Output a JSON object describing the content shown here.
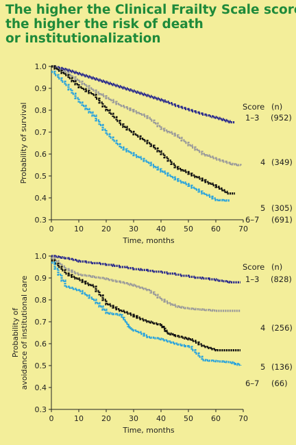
{
  "title_lines": [
    "The higher the Clinical Frailty Scale score,",
    "the higher the risk of death",
    "or institutionalization"
  ],
  "colors": {
    "s1_3": "#2b2b8c",
    "s4": "#9a9a9a",
    "s5": "#111111",
    "s6_7": "#2aa3dc",
    "title": "#1e8a3a",
    "background": "#f3ee9a"
  },
  "chart_data": [
    {
      "type": "line",
      "xlabel": "Time, months",
      "ylabel": "Probability of survival",
      "xlim": [
        0,
        70
      ],
      "ylim": [
        0.3,
        1.0
      ],
      "xticks": [
        "0",
        "10",
        "20",
        "30",
        "40",
        "50",
        "60",
        "70"
      ],
      "yticks": [
        "0.3",
        "0.4",
        "0.5",
        "0.6",
        "0.7",
        "0.8",
        "0.9",
        "1.0"
      ],
      "legend_header": {
        "score": "Score",
        "n": "(n)"
      },
      "series": [
        {
          "name": "1–3",
          "n": "(952)",
          "color": "#2b2b8c",
          "points": [
            [
              0,
              1.0
            ],
            [
              5,
              0.985
            ],
            [
              10,
              0.965
            ],
            [
              15,
              0.945
            ],
            [
              20,
              0.925
            ],
            [
              25,
              0.905
            ],
            [
              30,
              0.885
            ],
            [
              35,
              0.865
            ],
            [
              40,
              0.845
            ],
            [
              45,
              0.82
            ],
            [
              50,
              0.8
            ],
            [
              55,
              0.78
            ],
            [
              60,
              0.765
            ],
            [
              65,
              0.745
            ],
            [
              67,
              0.745
            ]
          ]
        },
        {
          "name": "4",
          "n": "(349)",
          "color": "#9a9a9a",
          "points": [
            [
              0,
              1.0
            ],
            [
              5,
              0.97
            ],
            [
              10,
              0.93
            ],
            [
              15,
              0.89
            ],
            [
              20,
              0.855
            ],
            [
              25,
              0.82
            ],
            [
              30,
              0.795
            ],
            [
              35,
              0.765
            ],
            [
              40,
              0.715
            ],
            [
              45,
              0.685
            ],
            [
              50,
              0.64
            ],
            [
              55,
              0.6
            ],
            [
              60,
              0.575
            ],
            [
              65,
              0.555
            ],
            [
              69,
              0.548
            ]
          ]
        },
        {
          "name": "5",
          "n": "(305)",
          "color": "#111111",
          "points": [
            [
              0,
              1.0
            ],
            [
              5,
              0.96
            ],
            [
              10,
              0.905
            ],
            [
              15,
              0.87
            ],
            [
              20,
              0.8
            ],
            [
              25,
              0.735
            ],
            [
              30,
              0.69
            ],
            [
              35,
              0.65
            ],
            [
              40,
              0.6
            ],
            [
              45,
              0.54
            ],
            [
              50,
              0.51
            ],
            [
              55,
              0.48
            ],
            [
              60,
              0.45
            ],
            [
              64,
              0.42
            ],
            [
              67,
              0.42
            ]
          ]
        },
        {
          "name": "6–7",
          "n": "(691)",
          "color": "#2aa3dc",
          "points": [
            [
              0,
              0.975
            ],
            [
              5,
              0.915
            ],
            [
              10,
              0.835
            ],
            [
              15,
              0.775
            ],
            [
              20,
              0.69
            ],
            [
              25,
              0.63
            ],
            [
              30,
              0.595
            ],
            [
              35,
              0.56
            ],
            [
              40,
              0.52
            ],
            [
              45,
              0.485
            ],
            [
              50,
              0.455
            ],
            [
              55,
              0.42
            ],
            [
              60,
              0.39
            ],
            [
              65,
              0.387
            ]
          ]
        }
      ],
      "series_label_values": [
        0.745,
        0.548,
        0.42,
        0.387
      ]
    },
    {
      "type": "line",
      "xlabel": "Time, months",
      "ylabel_lines": [
        "Probability of",
        "avoidance of institutional care"
      ],
      "xlim": [
        0,
        70
      ],
      "ylim": [
        0.3,
        1.0
      ],
      "xticks": [
        "0",
        "10",
        "20",
        "30",
        "40",
        "50",
        "60",
        "70"
      ],
      "yticks": [
        "0.3",
        "0.4",
        "0.5",
        "0.6",
        "0.7",
        "0.8",
        "0.9",
        "1.0"
      ],
      "legend_header": {
        "score": "Score",
        "n": "(n)"
      },
      "series": [
        {
          "name": "1–3",
          "n": "(828)",
          "color": "#2b2b8c",
          "points": [
            [
              0,
              1.0
            ],
            [
              5,
              0.99
            ],
            [
              10,
              0.975
            ],
            [
              20,
              0.96
            ],
            [
              30,
              0.94
            ],
            [
              40,
              0.925
            ],
            [
              50,
              0.905
            ],
            [
              60,
              0.89
            ],
            [
              65,
              0.88
            ],
            [
              69,
              0.88
            ]
          ]
        },
        {
          "name": "4",
          "n": "(256)",
          "color": "#9a9a9a",
          "points": [
            [
              0,
              0.99
            ],
            [
              5,
              0.94
            ],
            [
              10,
              0.915
            ],
            [
              15,
              0.905
            ],
            [
              20,
              0.895
            ],
            [
              25,
              0.88
            ],
            [
              30,
              0.865
            ],
            [
              35,
              0.845
            ],
            [
              40,
              0.8
            ],
            [
              45,
              0.77
            ],
            [
              50,
              0.76
            ],
            [
              55,
              0.755
            ],
            [
              60,
              0.75
            ],
            [
              69,
              0.75
            ]
          ]
        },
        {
          "name": "5",
          "n": "(136)",
          "color": "#111111",
          "points": [
            [
              0,
              0.98
            ],
            [
              5,
              0.92
            ],
            [
              10,
              0.89
            ],
            [
              15,
              0.86
            ],
            [
              20,
              0.78
            ],
            [
              25,
              0.75
            ],
            [
              30,
              0.725
            ],
            [
              35,
              0.7
            ],
            [
              40,
              0.685
            ],
            [
              42,
              0.65
            ],
            [
              45,
              0.635
            ],
            [
              50,
              0.62
            ],
            [
              55,
              0.59
            ],
            [
              60,
              0.57
            ],
            [
              65,
              0.57
            ],
            [
              69,
              0.57
            ]
          ]
        },
        {
          "name": "6–7",
          "n": "(66)",
          "color": "#2aa3dc",
          "points": [
            [
              0,
              0.97
            ],
            [
              5,
              0.86
            ],
            [
              10,
              0.84
            ],
            [
              15,
              0.8
            ],
            [
              20,
              0.74
            ],
            [
              25,
              0.73
            ],
            [
              28,
              0.68
            ],
            [
              30,
              0.66
            ],
            [
              35,
              0.63
            ],
            [
              40,
              0.62
            ],
            [
              45,
              0.6
            ],
            [
              50,
              0.585
            ],
            [
              55,
              0.525
            ],
            [
              60,
              0.52
            ],
            [
              65,
              0.515
            ],
            [
              69,
              0.5
            ]
          ]
        }
      ],
      "series_label_values": [
        0.88,
        0.75,
        0.57,
        0.5
      ]
    }
  ]
}
